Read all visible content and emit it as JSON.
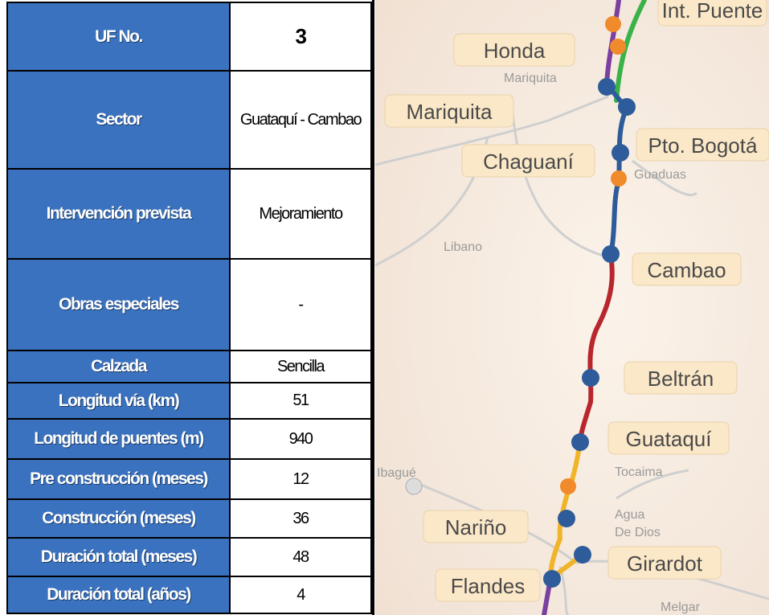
{
  "table": {
    "rows": [
      [
        "UF No.",
        "3"
      ],
      [
        "Sector",
        "Guataquí - Cambao"
      ],
      [
        "Intervención prevista",
        "Mejoramiento"
      ],
      [
        "Obras especiales",
        "-"
      ],
      [
        "Calzada",
        "Sencilla"
      ],
      [
        "Longitud vía  (km)",
        "51"
      ],
      [
        "Longitud de puentes (m)",
        "940"
      ],
      [
        "Pre construcción (meses)",
        "12"
      ],
      [
        "Construcción  (meses)",
        "36"
      ],
      [
        "Duración total (meses)",
        "48"
      ],
      [
        "Duración total (años)",
        "4"
      ]
    ]
  },
  "map": {
    "boxed": [
      "Int. Puente",
      "Honda",
      "Mariquita",
      "Pto. Bogotá",
      "Chaguaní",
      "Cambao",
      "Beltrán",
      "Guataquí",
      "Nariño",
      "Girardot",
      "Flandes"
    ],
    "places": [
      "Mariquita",
      "Guaduas",
      "Libano",
      "Ibagué",
      "Tocaima",
      "Agua",
      "De Dios",
      "Melgar"
    ]
  }
}
